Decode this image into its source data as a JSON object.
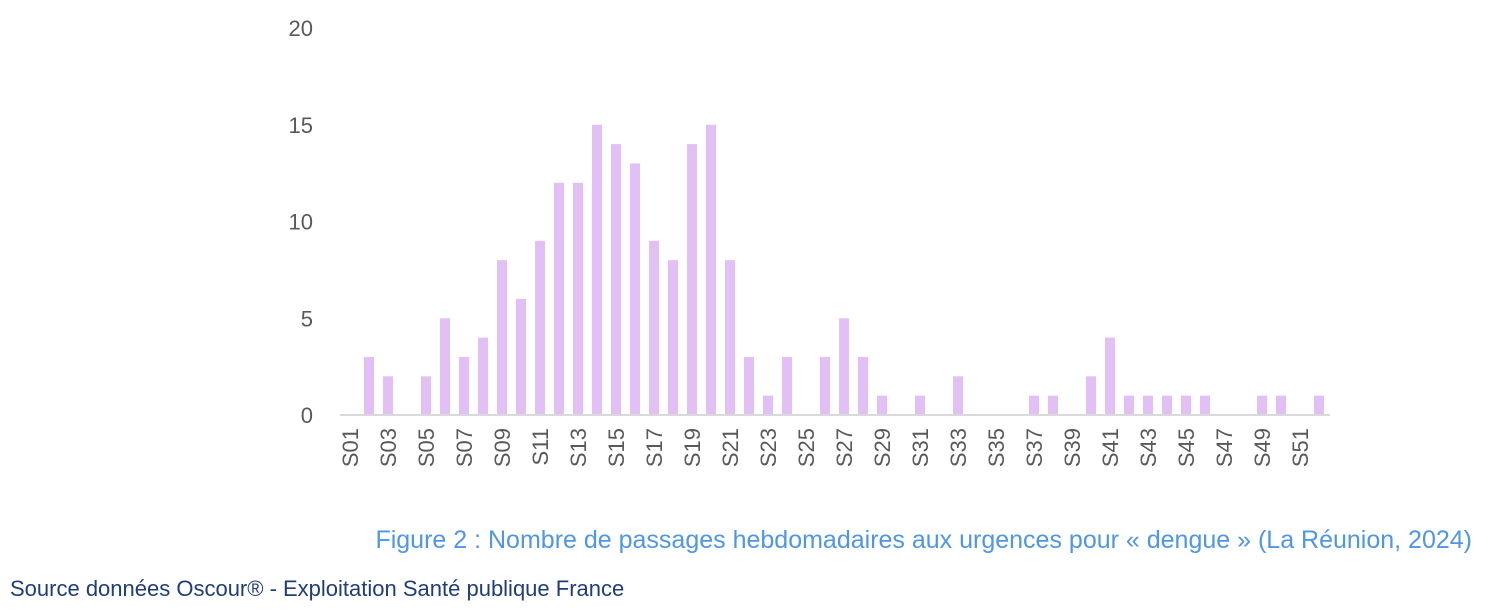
{
  "chart_data": {
    "type": "bar",
    "title": "Figure 2 : Nombre de passages hebdomadaires aux urgences pour « dengue » (La Réunion, 2024)",
    "xlabel": "",
    "ylabel": "",
    "ylim": [
      0,
      20
    ],
    "yticks": [
      0,
      5,
      10,
      15,
      20
    ],
    "grid": false,
    "bar_color": "#e2c0f5",
    "axis_color": "#d9d9d9",
    "categories": [
      "S01",
      "S02",
      "S03",
      "S04",
      "S05",
      "S06",
      "S07",
      "S08",
      "S09",
      "S10",
      "S11",
      "S12",
      "S13",
      "S14",
      "S15",
      "S16",
      "S17",
      "S18",
      "S19",
      "S20",
      "S21",
      "S22",
      "S23",
      "S24",
      "S25",
      "S26",
      "S27",
      "S28",
      "S29",
      "S30",
      "S31",
      "S32",
      "S33",
      "S34",
      "S35",
      "S36",
      "S37",
      "S38",
      "S39",
      "S40",
      "S41",
      "S42",
      "S43",
      "S44",
      "S45",
      "S46",
      "S47",
      "S48",
      "S49",
      "S50",
      "S51",
      "S52"
    ],
    "tick_labels_shown": [
      "S01",
      "S03",
      "S05",
      "S07",
      "S09",
      "S11",
      "S13",
      "S15",
      "S17",
      "S19",
      "S21",
      "S23",
      "S25",
      "S27",
      "S29",
      "S31",
      "S33",
      "S35",
      "S37",
      "S39",
      "S41",
      "S43",
      "S45",
      "S47",
      "S49",
      "S51"
    ],
    "values": [
      0,
      3,
      2,
      0,
      2,
      5,
      3,
      4,
      8,
      6,
      9,
      12,
      12,
      15,
      14,
      13,
      9,
      8,
      14,
      15,
      8,
      3,
      1,
      3,
      0,
      3,
      5,
      3,
      1,
      0,
      1,
      0,
      2,
      0,
      0,
      0,
      1,
      1,
      0,
      2,
      4,
      1,
      1,
      1,
      1,
      1,
      0,
      0,
      1,
      1,
      0,
      1
    ]
  },
  "caption": "Figure 2 : Nombre de passages hebdomadaires aux urgences pour « dengue » (La Réunion, 2024)",
  "source": "Source données Oscour® - Exploitation Santé publique France"
}
